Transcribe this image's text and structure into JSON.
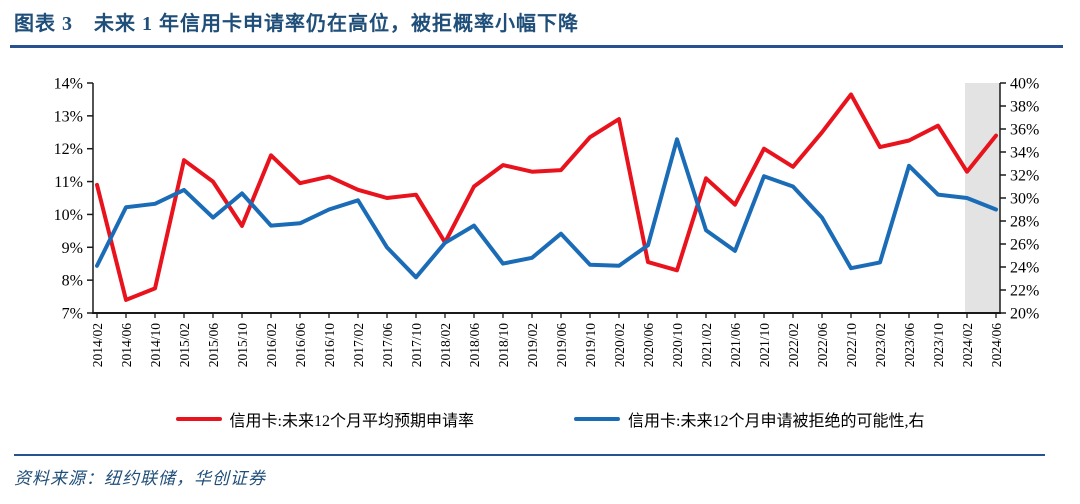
{
  "header": {
    "title": "图表 3　未来 1 年信用卡申请率仍在高位，被拒概率小幅下降"
  },
  "footer": {
    "source_label": "资料来源：纽约联储，华创证券"
  },
  "colors": {
    "red_line": "#e8131d",
    "blue_line": "#1b6cb7",
    "navy_text": "#1f4e79",
    "divider": "#27518f",
    "band": "#e3e3e3",
    "axis": "#1a1a1a"
  },
  "chart_data": {
    "type": "line",
    "title": "未来 1 年信用卡申请率仍在高位，被拒概率小幅下降",
    "categories": [
      "2014/02",
      "2014/06",
      "2014/10",
      "2015/02",
      "2015/06",
      "2015/10",
      "2016/02",
      "2016/06",
      "2016/10",
      "2017/02",
      "2017/06",
      "2017/10",
      "2018/02",
      "2018/06",
      "2018/10",
      "2019/02",
      "2019/06",
      "2019/10",
      "2020/02",
      "2020/06",
      "2020/10",
      "2021/02",
      "2021/06",
      "2021/10",
      "2022/02",
      "2022/06",
      "2022/10",
      "2023/02",
      "2023/06",
      "2023/10",
      "2024/02",
      "2024/06"
    ],
    "series": [
      {
        "name": "信用卡:未来12个月平均预期申请率",
        "axis": "left",
        "color": "#e8131d",
        "values": [
          10.9,
          7.4,
          7.75,
          11.65,
          11.0,
          9.65,
          11.8,
          10.95,
          11.15,
          10.75,
          10.5,
          10.6,
          9.15,
          10.85,
          11.5,
          11.3,
          11.35,
          12.35,
          12.9,
          8.55,
          8.3,
          11.1,
          10.3,
          12.0,
          11.45,
          12.5,
          13.65,
          12.05,
          12.25,
          12.7,
          11.3,
          12.4
        ]
      },
      {
        "name": "信用卡:未来12个月申请被拒绝的可能性,右",
        "axis": "right",
        "color": "#1b6cb7",
        "values": [
          24.1,
          29.2,
          29.5,
          30.7,
          28.3,
          30.4,
          27.6,
          27.8,
          29.0,
          29.8,
          25.7,
          23.1,
          26.1,
          27.6,
          24.3,
          24.8,
          26.9,
          24.2,
          24.1,
          25.9,
          35.1,
          27.2,
          25.4,
          31.9,
          31.0,
          28.3,
          23.9,
          24.4,
          32.8,
          30.3,
          30.0,
          29.0
        ]
      }
    ],
    "left_axis": {
      "min": 7,
      "max": 14,
      "step": 1,
      "unit": "%",
      "labels": [
        "14%",
        "13%",
        "12%",
        "11%",
        "10%",
        "9%",
        "8%",
        "7%"
      ]
    },
    "right_axis": {
      "min": 20,
      "max": 40,
      "step": 2,
      "unit": "%",
      "labels": [
        "40%",
        "38%",
        "36%",
        "34%",
        "32%",
        "30%",
        "28%",
        "26%",
        "24%",
        "22%",
        "20%"
      ]
    },
    "grid": false,
    "legend_position": "bottom",
    "highlight_band": {
      "from_category": "2024/02",
      "note": "gray shaded band at right edge"
    }
  }
}
